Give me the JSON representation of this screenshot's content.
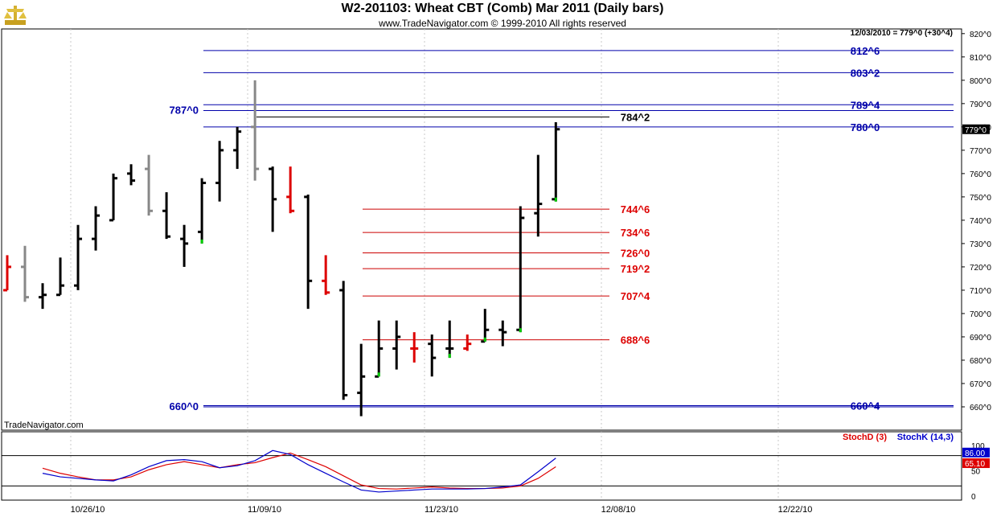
{
  "header": {
    "title": "W2-201103:  Wheat CBT (Comb) Mar 2011  (Daily bars)",
    "subtitle": "www.TradeNavigator.com © 1999-2010 All rights reserved",
    "readout": "12/03/2010 = 779^0 (+30^4)",
    "watermark": "TradeNavigator.com",
    "logo_icon": "trade-navigator-logo"
  },
  "indicator": {
    "stochD_label": "StochD (3)",
    "stochK_label": "StochK (14,3)",
    "stochD_color": "#dd0000",
    "stochK_color": "#0000cc",
    "stochK_value": "86.00",
    "stochD_value": "65.10",
    "axis_labels": [
      "100",
      "50",
      "0"
    ],
    "stochK": [
      45,
      38,
      35,
      32,
      30,
      42,
      58,
      70,
      72,
      68,
      56,
      60,
      70,
      90,
      82,
      62,
      45,
      28,
      12,
      8,
      10,
      12,
      14,
      14,
      14,
      15,
      18,
      22,
      48,
      75
    ],
    "stochD": [
      55,
      45,
      38,
      32,
      32,
      38,
      52,
      62,
      68,
      62,
      56,
      62,
      66,
      76,
      85,
      72,
      58,
      40,
      22,
      15,
      14,
      16,
      18,
      16,
      15,
      15,
      16,
      20,
      35,
      58
    ]
  },
  "chart_data": {
    "type": "ohlc",
    "title": "W2-201103:  Wheat CBT (Comb) Mar 2011  (Daily bars)",
    "ylim": [
      650,
      822
    ],
    "y_ticks": [
      "660^0",
      "670^0",
      "680^0",
      "690^0",
      "700^0",
      "710^0",
      "720^0",
      "730^0",
      "740^0",
      "750^0",
      "760^0",
      "770^0",
      "780^0",
      "790^0",
      "800^0",
      "810^0",
      "820^0"
    ],
    "x_ticks": [
      "10/26/10",
      "11/09/10",
      "11/23/10",
      "12/08/10",
      "12/22/10"
    ],
    "last_price": "779^0",
    "colors": {
      "up_down_normal": "#000000",
      "inside": "#888888",
      "reversal": "#dd0000",
      "signal": "#00cc00",
      "blue_level": "#0000aa",
      "red_level": "#cc0000"
    },
    "bars": [
      {
        "o": 710,
        "h": 725,
        "l": 710,
        "c": 720,
        "color": "red"
      },
      {
        "o": 720,
        "h": 729,
        "l": 705,
        "c": 707,
        "color": "gray"
      },
      {
        "o": 707,
        "h": 713,
        "l": 702,
        "c": 708,
        "color": "black"
      },
      {
        "o": 708,
        "h": 724,
        "l": 708,
        "c": 712,
        "color": "black"
      },
      {
        "o": 712,
        "h": 738,
        "l": 710,
        "c": 732,
        "color": "black"
      },
      {
        "o": 732,
        "h": 746,
        "l": 727,
        "c": 742,
        "color": "black"
      },
      {
        "o": 740,
        "h": 760,
        "l": 740,
        "c": 758,
        "color": "black"
      },
      {
        "o": 760,
        "h": 764,
        "l": 755,
        "c": 757,
        "color": "black"
      },
      {
        "o": 762,
        "h": 768,
        "l": 742,
        "c": 744,
        "color": "gray"
      },
      {
        "o": 744,
        "h": 752,
        "l": 732,
        "c": 733,
        "color": "black"
      },
      {
        "o": 732,
        "h": 738,
        "l": 720,
        "c": 730,
        "color": "black"
      },
      {
        "o": 735,
        "h": 758,
        "l": 730,
        "c": 756,
        "color": "black",
        "signal": "low"
      },
      {
        "o": 756,
        "h": 774,
        "l": 748,
        "c": 770,
        "color": "black"
      },
      {
        "o": 770,
        "h": 780,
        "l": 762,
        "c": 778,
        "color": "black"
      },
      {
        "o": 780,
        "h": 800,
        "l": 757,
        "c": 762,
        "color": "gray"
      },
      {
        "o": 762,
        "h": 763,
        "l": 735,
        "c": 749,
        "color": "black"
      },
      {
        "o": 750,
        "h": 763,
        "l": 743,
        "c": 744,
        "color": "red"
      },
      {
        "o": 750,
        "h": 751,
        "l": 702,
        "c": 714,
        "color": "black"
      },
      {
        "o": 714,
        "h": 725,
        "l": 708,
        "c": 709,
        "color": "red"
      },
      {
        "o": 710,
        "h": 714,
        "l": 663,
        "c": 665,
        "color": "black"
      },
      {
        "o": 666,
        "h": 687,
        "l": 656,
        "c": 673,
        "color": "black"
      },
      {
        "o": 673,
        "h": 697,
        "l": 673,
        "c": 685,
        "color": "black",
        "signal": "low"
      },
      {
        "o": 685,
        "h": 697,
        "l": 676,
        "c": 690,
        "color": "black"
      },
      {
        "o": 685,
        "h": 692,
        "l": 679,
        "c": 685,
        "color": "red"
      },
      {
        "o": 687,
        "h": 691,
        "l": 673,
        "c": 681,
        "color": "black"
      },
      {
        "o": 685,
        "h": 697,
        "l": 681,
        "c": 685,
        "color": "black",
        "signal": "low"
      },
      {
        "o": 685,
        "h": 691,
        "l": 684,
        "c": 687,
        "color": "red"
      },
      {
        "o": 688,
        "h": 702,
        "l": 688,
        "c": 693,
        "color": "black",
        "signal": "low"
      },
      {
        "o": 693,
        "h": 697,
        "l": 686,
        "c": 692,
        "color": "black"
      },
      {
        "o": 693,
        "h": 746,
        "l": 692,
        "c": 741,
        "color": "black",
        "signal": "low"
      },
      {
        "o": 743,
        "h": 768,
        "l": 733,
        "c": 747,
        "color": "black"
      },
      {
        "o": 749,
        "h": 782,
        "l": 748,
        "c": 779,
        "color": "black",
        "signal": "low"
      }
    ],
    "levels": [
      {
        "price": 812.75,
        "label": "812^6",
        "color": "blue",
        "side": "right"
      },
      {
        "price": 803.25,
        "label": "803^2",
        "color": "blue",
        "side": "right"
      },
      {
        "price": 789.5,
        "label": "789^4",
        "color": "blue",
        "side": "right"
      },
      {
        "price": 787.0,
        "label": "787^0",
        "color": "blue",
        "side": "left"
      },
      {
        "price": 784.25,
        "label": "784^2",
        "color": "black",
        "side": "right"
      },
      {
        "price": 780.0,
        "label": "780^0",
        "color": "blue",
        "side": "right"
      },
      {
        "price": 744.75,
        "label": "744^6",
        "color": "red",
        "side": "right"
      },
      {
        "price": 734.75,
        "label": "734^6",
        "color": "red",
        "side": "right"
      },
      {
        "price": 726.0,
        "label": "726^0",
        "color": "red",
        "side": "right"
      },
      {
        "price": 719.25,
        "label": "719^2",
        "color": "red",
        "side": "right"
      },
      {
        "price": 707.5,
        "label": "707^4",
        "color": "red",
        "side": "right"
      },
      {
        "price": 688.75,
        "label": "688^6",
        "color": "red",
        "side": "right"
      },
      {
        "price": 660.5,
        "label": "660^4",
        "color": "blue",
        "side": "right"
      },
      {
        "price": 660.0,
        "label": "660^0",
        "color": "blue",
        "side": "left"
      }
    ]
  }
}
